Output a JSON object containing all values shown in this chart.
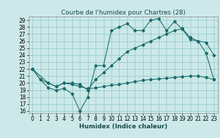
{
  "title": "Courbe de l'humidex pour Chartres (28)",
  "xlabel": "Humidex (Indice chaleur)",
  "xlim_min": -0.5,
  "xlim_max": 23.5,
  "ylim_min": 15.7,
  "ylim_max": 29.5,
  "xticks": [
    0,
    1,
    2,
    3,
    4,
    5,
    6,
    7,
    8,
    9,
    10,
    11,
    12,
    13,
    14,
    15,
    16,
    17,
    18,
    19,
    20,
    21,
    22,
    23
  ],
  "yticks": [
    16,
    17,
    18,
    19,
    20,
    21,
    22,
    23,
    24,
    25,
    26,
    27,
    28,
    29
  ],
  "background_color": "#cce8e8",
  "grid_color": "#99cccc",
  "line_color": "#1a6b6b",
  "line1_x": [
    0,
    1,
    2,
    3,
    4,
    5,
    6,
    7,
    8,
    9,
    10,
    11,
    12,
    13,
    14,
    15,
    16,
    17,
    18,
    19,
    20,
    21,
    22,
    23
  ],
  "line1_y": [
    22,
    20.5,
    19.3,
    19.0,
    19.2,
    18.5,
    16.0,
    18.0,
    22.5,
    22.5,
    27.5,
    28.0,
    28.5,
    27.5,
    27.5,
    29.0,
    29.2,
    27.5,
    28.8,
    27.7,
    26.2,
    26.0,
    24.3,
    20.5
  ],
  "line2_x": [
    0,
    1,
    2,
    3,
    4,
    5,
    6,
    7,
    8,
    9,
    10,
    11,
    12,
    13,
    14,
    15,
    16,
    17,
    18,
    19,
    20,
    21,
    22,
    23
  ],
  "line2_y": [
    22,
    20.5,
    20.0,
    19.5,
    20.0,
    19.8,
    19.5,
    19.2,
    19.3,
    19.5,
    19.7,
    19.8,
    20.0,
    20.2,
    20.4,
    20.5,
    20.6,
    20.7,
    20.8,
    20.9,
    21.0,
    21.0,
    20.8,
    20.5
  ],
  "line3_x": [
    0,
    2,
    3,
    4,
    5,
    6,
    7,
    8,
    9,
    10,
    11,
    12,
    13,
    14,
    15,
    16,
    17,
    18,
    19,
    20,
    21,
    22,
    23
  ],
  "line3_y": [
    22,
    20.0,
    19.5,
    20.0,
    20.0,
    19.8,
    19.0,
    20.5,
    21.5,
    22.5,
    23.5,
    24.5,
    25.0,
    25.5,
    26.0,
    26.5,
    27.0,
    27.5,
    27.8,
    26.5,
    26.0,
    25.8,
    24.0
  ],
  "tick_fontsize": 5.5,
  "xlabel_fontsize": 6.5,
  "title_fontsize": 6.5,
  "marker_size": 2.0,
  "line_width": 0.8
}
